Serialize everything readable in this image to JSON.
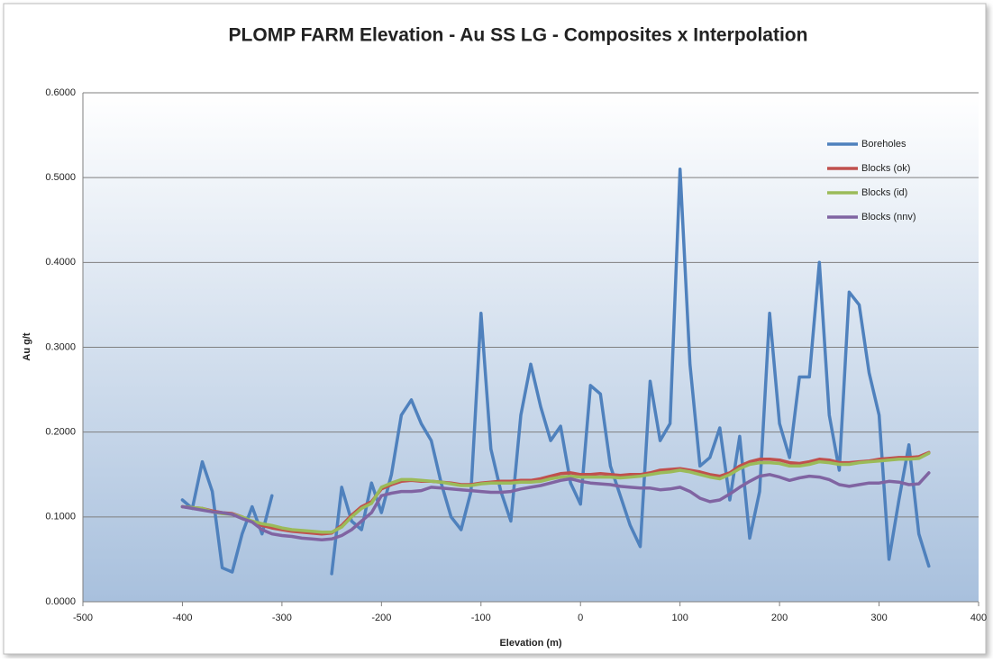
{
  "chart_data": {
    "type": "line",
    "title": "PLOMP FARM Elevation - Au SS LG - Composites x Interpolation",
    "x_label": "Elevation (m)",
    "y_label": "Au g/t",
    "x": [
      -400,
      -390,
      -380,
      -370,
      -360,
      -350,
      -340,
      -330,
      -320,
      -310,
      -300,
      -290,
      -280,
      -270,
      -260,
      -250,
      -240,
      -230,
      -220,
      -210,
      -200,
      -190,
      -180,
      -170,
      -160,
      -150,
      -140,
      -130,
      -120,
      -110,
      -100,
      -90,
      -80,
      -70,
      -60,
      -50,
      -40,
      -30,
      -20,
      -10,
      0,
      10,
      20,
      30,
      40,
      50,
      60,
      70,
      80,
      90,
      100,
      110,
      120,
      130,
      140,
      150,
      160,
      170,
      180,
      190,
      200,
      210,
      220,
      230,
      240,
      250,
      260,
      270,
      280,
      290,
      300,
      310,
      320,
      330,
      340,
      350
    ],
    "series": [
      {
        "name": "Boreholes",
        "color": "#4f81bd",
        "values": [
          0.12,
          0.11,
          0.165,
          0.13,
          0.04,
          0.035,
          0.08,
          0.112,
          0.08,
          0.125,
          null,
          null,
          null,
          null,
          null,
          0.033,
          0.135,
          0.095,
          0.085,
          0.14,
          0.105,
          0.15,
          0.22,
          0.238,
          0.21,
          0.19,
          0.14,
          0.1,
          0.085,
          0.13,
          0.34,
          0.18,
          0.13,
          0.095,
          0.22,
          0.28,
          0.23,
          0.19,
          0.207,
          0.14,
          0.115,
          0.255,
          0.245,
          0.16,
          0.125,
          0.09,
          0.065,
          0.26,
          0.19,
          0.21,
          0.51,
          0.28,
          0.16,
          0.17,
          0.205,
          0.12,
          0.195,
          0.075,
          0.13,
          0.34,
          0.21,
          0.17,
          0.265,
          0.265,
          0.4,
          0.22,
          0.155,
          0.365,
          0.35,
          0.27,
          0.22,
          0.05,
          0.12,
          0.185,
          0.08,
          0.042
        ]
      },
      {
        "name": "Blocks (ok)",
        "color": "#c0504d",
        "values": [
          0.112,
          0.111,
          0.11,
          0.107,
          0.105,
          0.104,
          0.1,
          0.094,
          0.09,
          0.087,
          0.085,
          0.083,
          0.082,
          0.081,
          0.08,
          0.081,
          0.09,
          0.102,
          0.112,
          0.118,
          0.133,
          0.138,
          0.142,
          0.143,
          0.142,
          0.142,
          0.141,
          0.14,
          0.138,
          0.138,
          0.14,
          0.141,
          0.142,
          0.142,
          0.143,
          0.143,
          0.145,
          0.148,
          0.151,
          0.152,
          0.15,
          0.15,
          0.151,
          0.15,
          0.149,
          0.15,
          0.15,
          0.152,
          0.155,
          0.156,
          0.157,
          0.155,
          0.153,
          0.15,
          0.148,
          0.152,
          0.16,
          0.165,
          0.168,
          0.168,
          0.167,
          0.164,
          0.163,
          0.165,
          0.168,
          0.167,
          0.164,
          0.164,
          0.165,
          0.166,
          0.168,
          0.169,
          0.17,
          0.17,
          0.171,
          0.176
        ]
      },
      {
        "name": "Blocks (id)",
        "color": "#9bbb59",
        "values": [
          0.112,
          0.111,
          0.11,
          0.106,
          0.104,
          0.103,
          0.1,
          0.095,
          0.092,
          0.09,
          0.087,
          0.085,
          0.084,
          0.083,
          0.082,
          0.082,
          0.088,
          0.1,
          0.11,
          0.116,
          0.135,
          0.14,
          0.144,
          0.144,
          0.143,
          0.142,
          0.141,
          0.139,
          0.137,
          0.137,
          0.139,
          0.14,
          0.14,
          0.14,
          0.141,
          0.141,
          0.142,
          0.145,
          0.147,
          0.148,
          0.147,
          0.147,
          0.147,
          0.147,
          0.146,
          0.147,
          0.148,
          0.15,
          0.152,
          0.153,
          0.155,
          0.153,
          0.15,
          0.147,
          0.145,
          0.15,
          0.157,
          0.162,
          0.164,
          0.164,
          0.163,
          0.16,
          0.16,
          0.162,
          0.165,
          0.164,
          0.162,
          0.162,
          0.164,
          0.165,
          0.166,
          0.167,
          0.168,
          0.168,
          0.169,
          0.175
        ]
      },
      {
        "name": "Blocks (nnv)",
        "color": "#8064a2",
        "values": [
          0.112,
          0.11,
          0.108,
          0.106,
          0.105,
          0.103,
          0.098,
          0.094,
          0.085,
          0.08,
          0.078,
          0.077,
          0.075,
          0.074,
          0.073,
          0.074,
          0.078,
          0.085,
          0.095,
          0.105,
          0.125,
          0.128,
          0.13,
          0.13,
          0.131,
          0.135,
          0.134,
          0.133,
          0.132,
          0.131,
          0.13,
          0.129,
          0.129,
          0.13,
          0.133,
          0.135,
          0.137,
          0.14,
          0.143,
          0.145,
          0.142,
          0.14,
          0.139,
          0.138,
          0.136,
          0.135,
          0.134,
          0.134,
          0.132,
          0.133,
          0.135,
          0.13,
          0.122,
          0.118,
          0.12,
          0.127,
          0.135,
          0.142,
          0.148,
          0.15,
          0.147,
          0.143,
          0.146,
          0.148,
          0.147,
          0.144,
          0.138,
          0.136,
          0.138,
          0.14,
          0.14,
          0.142,
          0.141,
          0.138,
          0.139,
          0.152
        ]
      }
    ],
    "xlim": [
      -500,
      400
    ],
    "xticks": [
      -500,
      -400,
      -300,
      -200,
      -100,
      0,
      100,
      200,
      300,
      400
    ],
    "ylim": [
      0,
      0.6
    ],
    "yticks": [
      {
        "value": 0,
        "label": "0.0000"
      },
      {
        "value": 0.1,
        "label": "0.1000"
      },
      {
        "value": 0.2,
        "label": "0.2000"
      },
      {
        "value": 0.3,
        "label": "0.3000"
      },
      {
        "value": 0.4,
        "label": "0.4000"
      },
      {
        "value": 0.5,
        "label": "0.5000"
      },
      {
        "value": 0.6,
        "label": "0.6000"
      }
    ],
    "grid": true,
    "legend": "top-right"
  }
}
